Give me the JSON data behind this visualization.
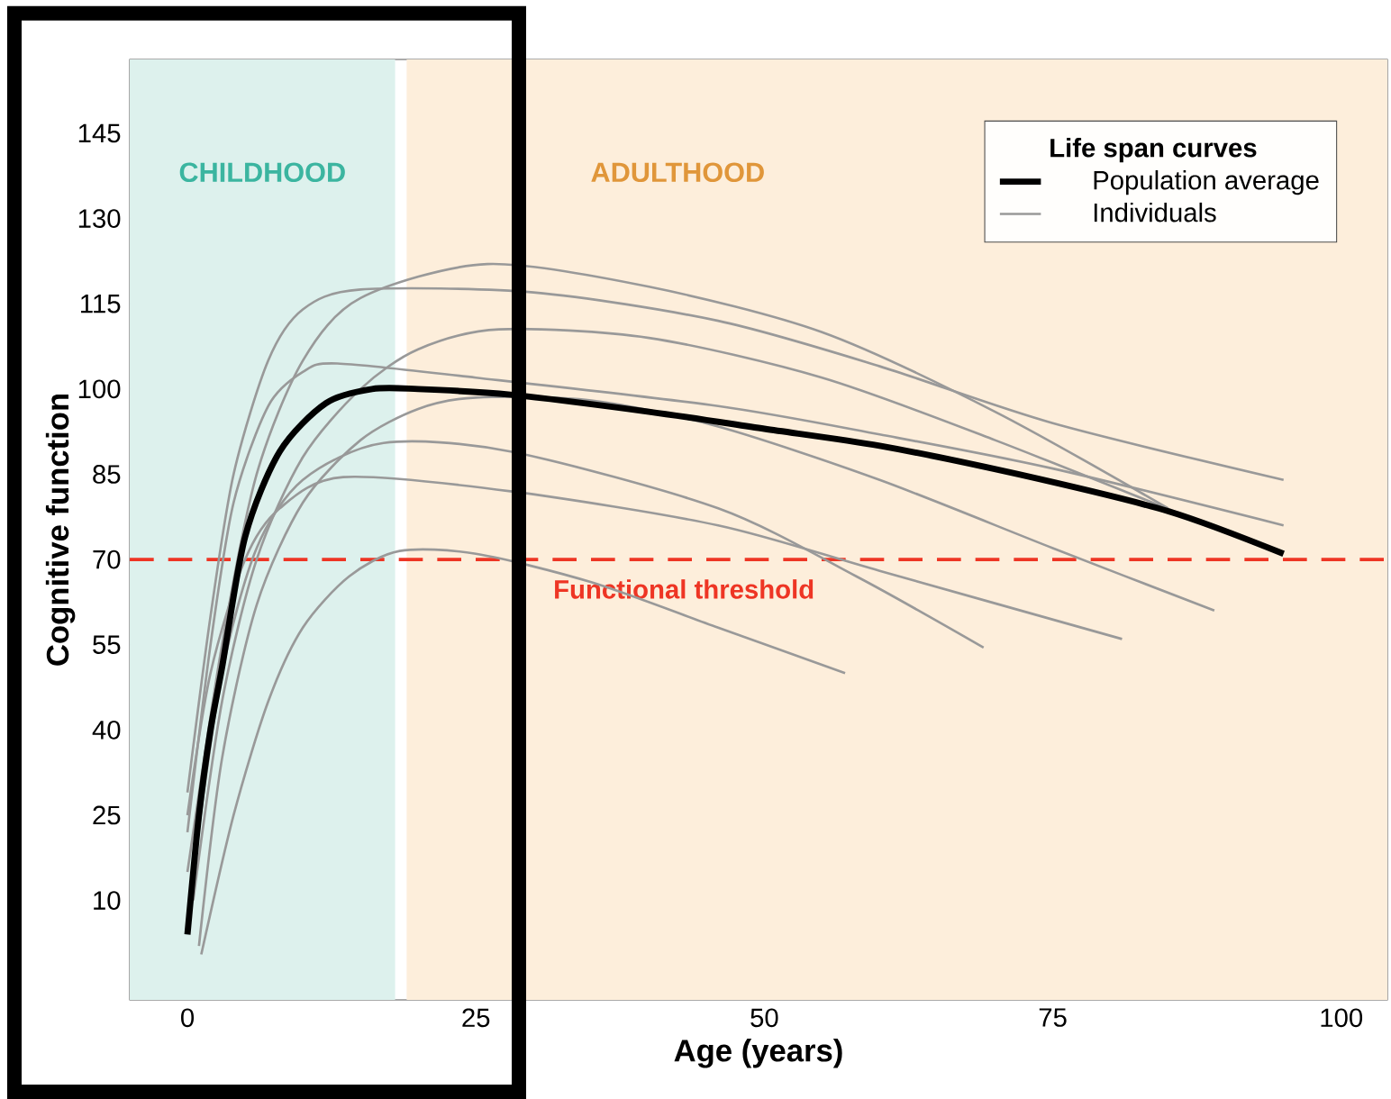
{
  "chart_data": {
    "type": "line",
    "xlabel": "Age (years)",
    "ylabel": "Cognitive function",
    "legend_title": "Life span curves",
    "legend": "top right",
    "xlim": [
      -5,
      104
    ],
    "ylim": [
      -7.5,
      158
    ],
    "xticks": [
      0,
      25,
      50,
      75,
      100
    ],
    "yticks": [
      10,
      25,
      40,
      55,
      70,
      85,
      100,
      115,
      130,
      145
    ],
    "grid": false,
    "marker": "none",
    "line_style": "solid",
    "bands": [
      {
        "axis": "x",
        "from": -5,
        "to": 18,
        "label": "CHILDHOOD",
        "color": "#ddf1ed"
      },
      {
        "axis": "x",
        "from": 19,
        "to": 104,
        "label": "ADULTHOOD",
        "color": "#fdeedb"
      }
    ],
    "ref_lines": [
      {
        "axis": "y",
        "value": 70,
        "label": "Functional threshold",
        "color": "#ee3524",
        "line_style": "dashed"
      }
    ],
    "series": [
      {
        "name": "Population average",
        "color": "#000000",
        "x": [
          0,
          1,
          2,
          3,
          5,
          8,
          12,
          16,
          20,
          28,
          40,
          50,
          60,
          72,
          85,
          95
        ],
        "values": [
          4,
          25,
          40,
          51,
          74,
          89,
          97.5,
          100,
          100,
          99,
          96,
          93,
          90,
          85,
          78.5,
          71
        ]
      },
      {
        "name": "Individuals",
        "color": "#999999",
        "x": [
          0,
          3,
          6,
          10,
          15,
          26,
          40,
          55,
          70,
          85
        ],
        "values": [
          15,
          55,
          85,
          105,
          116,
          122,
          118,
          110,
          96,
          79
        ]
      },
      {
        "color": "#999999",
        "x": [
          0,
          2,
          4,
          7,
          10,
          15,
          30,
          46,
          60,
          75,
          95
        ],
        "values": [
          29,
          60,
          85,
          105,
          114,
          117.5,
          117,
          112,
          104,
          94,
          84
        ]
      },
      {
        "color": "#999999",
        "x": [
          0.5,
          3,
          6,
          10,
          15,
          20,
          27,
          40,
          55,
          70,
          91
        ],
        "values": [
          10,
          45,
          70,
          88,
          100,
          107,
          110.5,
          109,
          102,
          91,
          74
        ]
      },
      {
        "color": "#999999",
        "x": [
          0,
          2,
          4,
          7,
          10,
          13,
          25,
          46,
          60,
          75,
          95
        ],
        "values": [
          22,
          55,
          80,
          97,
          103,
          104.5,
          102,
          97,
          92,
          86,
          76
        ]
      },
      {
        "color": "#999999",
        "x": [
          1,
          3,
          6,
          10,
          15,
          20,
          25,
          35,
          46,
          60,
          75,
          89
        ],
        "values": [
          2,
          35,
          62,
          80,
          91,
          96.5,
          98.5,
          98,
          93.4,
          84,
          72,
          61
        ]
      },
      {
        "color": "#999999",
        "x": [
          0.5,
          3,
          6,
          10,
          17,
          28,
          46,
          58,
          69
        ],
        "values": [
          15,
          50,
          72,
          84,
          90.5,
          89,
          79,
          67,
          54.5
        ]
      },
      {
        "color": "#999999",
        "x": [
          0,
          2,
          5,
          8,
          13.5,
          28,
          46,
          60,
          81
        ],
        "values": [
          25,
          50,
          70,
          79,
          84.5,
          82,
          76,
          68,
          56
        ]
      },
      {
        "color": "#999999",
        "x": [
          1.2,
          4,
          7,
          10,
          14,
          18.4,
          25,
          35,
          46,
          57
        ],
        "values": [
          0.5,
          25,
          45,
          58,
          67,
          71.5,
          71,
          66,
          58,
          50
        ]
      }
    ]
  }
}
